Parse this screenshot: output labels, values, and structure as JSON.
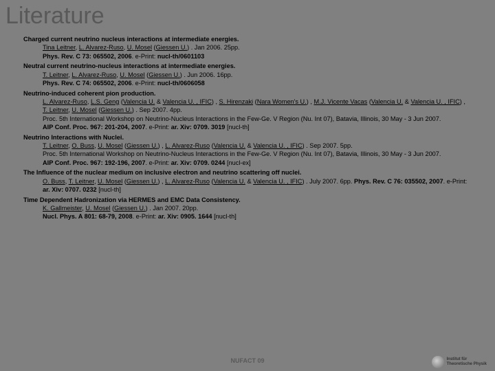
{
  "title": "Literature",
  "footer": "NUFACT 09",
  "logo_lines": [
    "Institut für",
    "Theoretische Physik"
  ],
  "colors": {
    "background": "#808080",
    "title": "#595959"
  },
  "refs": [
    {
      "title": "Charged current neutrino nucleus interactions at intermediate energies.",
      "body": "<a>Tina Leitner</a>, <a>L. Alvarez-Ruso</a>, <a>U. Mosel</a> (<a>Giessen U.</a>) . Jan 2006. 25pp.<br><b>Phys. Rev. C 73: 065502, 2006</b>. e-Print: <b>nucl-th/0601103</b>"
    },
    {
      "title": "Neutral current neutrino-nucleus interactions at intermediate energies.",
      "body": "<a>T. Leitner</a>, <a>L. Alvarez-Ruso</a>, <a>U. Mosel</a> (<a>Giessen U.</a>) . Jun 2006. 16pp.<br><b>Phys. Rev. C 74: 065502, 2006</b>. e-Print: <b>nucl-th/0606058</b>"
    },
    {
      "title": "Neutrino-induced coherent pion production.",
      "body": "<a>L. Alvarez-Ruso</a>, <a>L.S. Geng</a> (<a>Valencia U.</a> & <a>Valencia U. , IFIC</a>) , <a>S. Hirenzaki</a> (<a>Nara Women's U.</a>) , <a>M.J. Vicente Vacas</a> (<a>Valencia U.</a> & <a>Valencia U. , IFIC</a>) , <a>T. Leitner</a>, <a>U. Mosel</a> (<a>Giessen U.</a>) . Sep 2007. 4pp.<br>Proc. 5th International Workshop on Neutrino-Nucleus Interactions in the Few-Ge. V Region (Nu. Int 07), Batavia, Illinois, 30 May - 3 Jun 2007.<br><b>AIP Conf. Proc. 967: 201-204, 2007</b>. e-Print: <b>ar. Xiv: 0709. 3019</b> [nucl-th]"
    },
    {
      "title": "Neutrino Interactions with Nuclei.",
      "body": "<a>T. Leitner</a>, <a>O. Buss</a>, <a>U. Mosel</a> (<a>Giessen U.</a>) , <a>L. Alvarez-Ruso</a> (<a>Valencia U.</a> & <a>Valencia U. , IFIC</a>) . Sep 2007. 5pp.<br>Proc. 5th International Workshop on Neutrino-Nucleus Interactions in the Few-Ge. V Region (Nu. Int 07), Batavia, Illinois, 30 May - 3 Jun 2007.<br><b>AIP Conf. Proc. 967: 192-196, 2007</b>. e-Print: <b>ar. Xiv: 0709. 0244</b> [nucl-ex]"
    },
    {
      "title": "The Influence of the nuclear medium on inclusive electron and neutrino scattering off nuclei.",
      "body": "<a>O. Buss</a>, <a>T. Leitner</a>, <a>U. Mosel</a> (<a>Giessen U.</a>) , <a>L. Alvarez-Ruso</a> (<a>Valencia U.</a> & <a>Valencia U. , IFIC</a>) . July 2007. 6pp. <b>Phys. Rev. C 76: 035502, 2007</b>. e-Print: <b>ar. Xiv: 0707. 0232</b> [nucl-th]"
    },
    {
      "title": "Time Dependent Hadronization via HERMES and EMC Data Consistency.",
      "body": "<a>K. Gallmeister</a>, <a>U. Mosel</a> (<a>Giessen U.</a>) . Jan 2007. 20pp.<br><b>Nucl. Phys. A 801: 68-79, 2008</b>. e-Print: <b>ar. Xiv: 0905. 1644</b> [nucl-th]"
    }
  ]
}
